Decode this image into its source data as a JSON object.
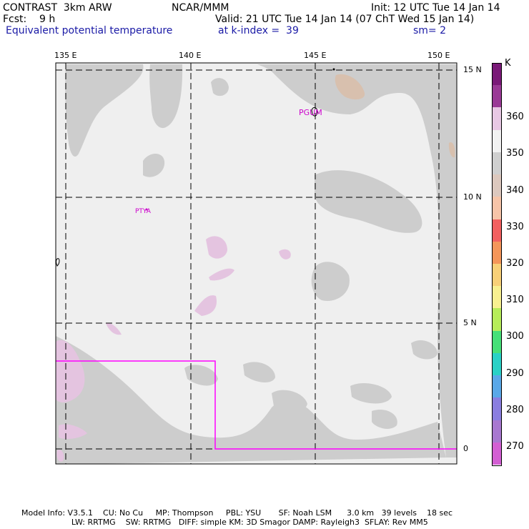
{
  "header": {
    "model": "CONTRAST  3km ARW",
    "org": "NCAR/MMM",
    "init": "Init: 12 UTC Tue 14 Jan 14",
    "fcst": "Fcst:    9 h",
    "valid": "Valid: 21 UTC Tue 14 Jan 14 (07 ChT Wed 15 Jan 14)",
    "field": "Equivalent potential temperature",
    "level": "at k-index =  39",
    "smooth": "sm= 2"
  },
  "axes": {
    "lon_labels": [
      "135 E",
      "140 E",
      "145 E",
      "150 E"
    ],
    "lat_labels": [
      "15 N",
      "10 N",
      "5 N",
      "0"
    ]
  },
  "places": {
    "pgum": "PGUM",
    "ptya": "PTYA"
  },
  "colorbar": {
    "unit": "K",
    "levels": [
      {
        "label": "270",
        "color": "#d35fd3"
      },
      {
        "label": "280",
        "color": "#8a7ee0"
      },
      {
        "label": "290",
        "color": "#2ad1c6"
      },
      {
        "label": "300",
        "color": "#46e078"
      },
      {
        "label": "310",
        "color": "#b6ec5a"
      },
      {
        "label": "320",
        "color": "#f8d078"
      },
      {
        "label": "330",
        "color": "#f4965a"
      },
      {
        "label": "340",
        "color": "#f6c4a8"
      },
      {
        "label": "350",
        "color": "#cfcfcf"
      },
      {
        "label": "360",
        "color": "#f0f0f0"
      }
    ],
    "extra_colors": [
      "#9a3a96",
      "#7a1a78",
      "#e8c8e4",
      "#f26060",
      "#f8f090",
      "#dcc8be",
      "#f2f2f2"
    ]
  },
  "colors": {
    "ocean": "#efefef",
    "gray": "#cdcdcd",
    "purple": "#e4c4e0",
    "tan": "#d8c0ae",
    "box": "#ff00ff"
  },
  "footer": {
    "line1": "Model Info: V3.5.1    CU: No Cu     MP: Thompson     PBL: YSU       SF: Noah LSM      3.0 km   39 levels    18 sec",
    "line2": "                    LW: RRTMG    SW: RRTMG   DIFF: simple KM: 3D Smagor DAMP: Rayleigh3  SFLAY: Rev MM5"
  }
}
